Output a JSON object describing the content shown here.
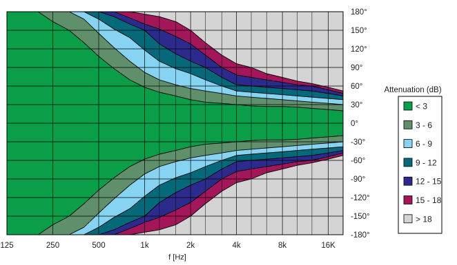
{
  "chart_data": {
    "type": "contour",
    "title": "",
    "xlabel": "f [Hz]",
    "ylabel": "",
    "x_scale": "log",
    "xlim": [
      125,
      20000
    ],
    "ylim": [
      -180,
      180
    ],
    "x_ticks": [
      {
        "value": 125,
        "label": "125"
      },
      {
        "value": 250,
        "label": "250"
      },
      {
        "value": 500,
        "label": "500"
      },
      {
        "value": 1000,
        "label": "1k"
      },
      {
        "value": 2000,
        "label": "2k"
      },
      {
        "value": 4000,
        "label": "4k"
      },
      {
        "value": 8000,
        "label": "8k"
      },
      {
        "value": 16000,
        "label": "16K"
      }
    ],
    "y_ticks": [
      {
        "value": 180,
        "label": "180°"
      },
      {
        "value": 150,
        "label": "150°"
      },
      {
        "value": 120,
        "label": "120°"
      },
      {
        "value": 90,
        "label": "90°"
      },
      {
        "value": 60,
        "label": "60°"
      },
      {
        "value": 30,
        "label": "30°"
      },
      {
        "value": 0,
        "label": "0°"
      },
      {
        "value": -30,
        "label": "-30°"
      },
      {
        "value": -60,
        "label": "-60°"
      },
      {
        "value": -90,
        "label": "-90°"
      },
      {
        "value": -120,
        "label": "-120°"
      },
      {
        "value": -150,
        "label": "-150°"
      },
      {
        "value": -180,
        "label": "-180°"
      }
    ],
    "minor_x_gridlines": [
      1250,
      1600,
      2500,
      3200,
      5000,
      6300,
      10000,
      12500
    ],
    "grid": true,
    "legend": {
      "title": "Attenuation (dB)",
      "placement": "right",
      "entries": [
        {
          "label": "< 3",
          "color": "#0a9e48"
        },
        {
          "label": "3 - 6",
          "color": "#5f8f6b"
        },
        {
          "label": "6 - 9",
          "color": "#87d3f2"
        },
        {
          "label": "9 - 12",
          "color": "#06697a"
        },
        {
          "label": "12 - 15",
          "color": "#2c2a8c"
        },
        {
          "label": "15 - 18",
          "color": "#a3165a"
        },
        {
          "label": "> 18",
          "color": "#d4d4d4"
        }
      ]
    },
    "frequencies": [
      125,
      200,
      250,
      320,
      400,
      500,
      630,
      800,
      1000,
      1250,
      1600,
      2000,
      2500,
      3200,
      4000,
      5000,
      6300,
      8000,
      10000,
      12500,
      16000,
      20000
    ],
    "contour_boundaries": [
      {
        "upper": "< 3",
        "lower": "3 - 6",
        "angles": [
          180,
          180,
          164,
          150,
          130,
          108,
          88,
          70,
          58,
          50,
          44,
          38,
          34,
          32,
          30,
          28,
          27,
          27,
          26,
          24,
          22,
          20
        ]
      },
      {
        "upper": "3 - 6",
        "lower": "6 - 9",
        "angles": [
          180,
          180,
          180,
          180,
          168,
          145,
          122,
          100,
          82,
          70,
          62,
          56,
          52,
          48,
          44,
          42,
          40,
          38,
          36,
          34,
          32,
          30
        ]
      },
      {
        "upper": "6 - 9",
        "lower": "9 - 12",
        "angles": [
          180,
          180,
          180,
          180,
          180,
          168,
          152,
          138,
          118,
          100,
          88,
          80,
          70,
          60,
          52,
          50,
          48,
          46,
          44,
          42,
          40,
          38
        ]
      },
      {
        "upper": "9 - 12",
        "lower": "12 - 15",
        "angles": [
          180,
          180,
          180,
          180,
          180,
          180,
          172,
          160,
          150,
          128,
          112,
          100,
          90,
          74,
          62,
          60,
          58,
          56,
          54,
          52,
          48,
          44
        ]
      },
      {
        "upper": "12 - 15",
        "lower": "15 - 18",
        "angles": [
          180,
          180,
          180,
          180,
          180,
          180,
          180,
          170,
          160,
          152,
          140,
          128,
          110,
          90,
          78,
          74,
          70,
          66,
          62,
          60,
          54,
          48
        ]
      },
      {
        "upper": "15 - 18",
        "lower": "> 18",
        "angles": [
          180,
          180,
          180,
          180,
          180,
          180,
          180,
          180,
          176,
          172,
          164,
          150,
          130,
          110,
          96,
          90,
          80,
          74,
          68,
          64,
          58,
          52
        ]
      }
    ]
  }
}
